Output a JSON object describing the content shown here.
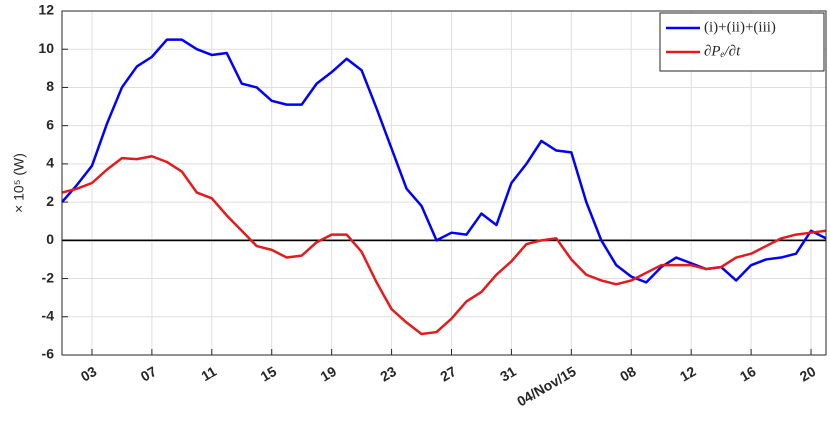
{
  "chart_data": {
    "type": "line",
    "y_label": "× 10⁵ (W)",
    "xlim": [
      "2015-10-01",
      "2015-11-21"
    ],
    "xticks": [
      {
        "value": "2015-10-03",
        "label": "03"
      },
      {
        "value": "2015-10-07",
        "label": "07"
      },
      {
        "value": "2015-10-11",
        "label": "11"
      },
      {
        "value": "2015-10-15",
        "label": "15"
      },
      {
        "value": "2015-10-19",
        "label": "19"
      },
      {
        "value": "2015-10-23",
        "label": "23"
      },
      {
        "value": "2015-10-27",
        "label": "27"
      },
      {
        "value": "2015-10-31",
        "label": "31"
      },
      {
        "value": "2015-11-04",
        "label": "04/Nov/15"
      },
      {
        "value": "2015-11-08",
        "label": "08"
      },
      {
        "value": "2015-11-12",
        "label": "12"
      },
      {
        "value": "2015-11-16",
        "label": "16"
      },
      {
        "value": "2015-11-20",
        "label": "20"
      }
    ],
    "ylim": [
      -6,
      12
    ],
    "yticks": [
      -6,
      -4,
      -2,
      0,
      2,
      4,
      6,
      8,
      10,
      12
    ],
    "grid": true,
    "legend": "top-right",
    "x": [
      "2015-10-01",
      "2015-10-02",
      "2015-10-03",
      "2015-10-04",
      "2015-10-05",
      "2015-10-06",
      "2015-10-07",
      "2015-10-08",
      "2015-10-09",
      "2015-10-10",
      "2015-10-11",
      "2015-10-12",
      "2015-10-13",
      "2015-10-14",
      "2015-10-15",
      "2015-10-16",
      "2015-10-17",
      "2015-10-18",
      "2015-10-19",
      "2015-10-20",
      "2015-10-21",
      "2015-10-22",
      "2015-10-23",
      "2015-10-24",
      "2015-10-25",
      "2015-10-26",
      "2015-10-27",
      "2015-10-28",
      "2015-10-29",
      "2015-10-30",
      "2015-10-31",
      "2015-11-01",
      "2015-11-02",
      "2015-11-03",
      "2015-11-04",
      "2015-11-05",
      "2015-11-06",
      "2015-11-07",
      "2015-11-08",
      "2015-11-09",
      "2015-11-10",
      "2015-11-11",
      "2015-11-12",
      "2015-11-13",
      "2015-11-14",
      "2015-11-15",
      "2015-11-16",
      "2015-11-17",
      "2015-11-18",
      "2015-11-19",
      "2015-11-20",
      "2015-11-21"
    ],
    "series": [
      {
        "name": "(i)+(ii)+(iii)",
        "color": "#0000ff",
        "values": [
          2.0,
          2.9,
          3.9,
          6.1,
          8.0,
          9.1,
          9.6,
          10.5,
          10.5,
          10.0,
          9.7,
          9.8,
          8.2,
          8.0,
          7.3,
          7.1,
          7.1,
          8.2,
          8.8,
          9.5,
          8.9,
          6.9,
          4.8,
          2.7,
          1.8,
          0.0,
          0.4,
          0.3,
          1.4,
          0.8,
          3.0,
          4.0,
          5.2,
          4.7,
          4.6,
          2.0,
          0.0,
          -1.3,
          -1.9,
          -2.2,
          -1.4,
          -0.9,
          -1.2,
          -1.5,
          -1.4,
          -2.1,
          -1.3,
          -1.0,
          -0.9,
          -0.7,
          0.5,
          0.1
        ]
      },
      {
        "name": "∂Pₑ/∂t",
        "color": "#e41a1c",
        "values": [
          2.5,
          2.7,
          3.0,
          3.7,
          4.3,
          4.25,
          4.4,
          4.1,
          3.6,
          2.5,
          2.2,
          1.3,
          0.5,
          -0.3,
          -0.5,
          -0.9,
          -0.8,
          -0.1,
          0.3,
          0.3,
          -0.6,
          -2.2,
          -3.6,
          -4.3,
          -4.9,
          -4.8,
          -4.1,
          -3.2,
          -2.7,
          -1.8,
          -1.1,
          -0.2,
          0.0,
          0.1,
          -1.0,
          -1.8,
          -2.1,
          -2.3,
          -2.1,
          -1.7,
          -1.3,
          -1.3,
          -1.3,
          -1.5,
          -1.4,
          -0.9,
          -0.7,
          -0.3,
          0.1,
          0.3,
          0.4,
          0.5
        ]
      }
    ]
  }
}
